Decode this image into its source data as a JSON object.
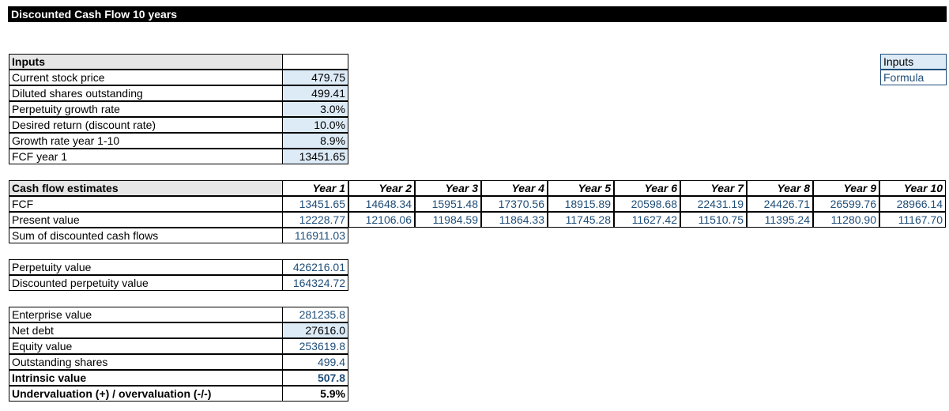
{
  "title": "Discounted Cash Flow 10 years",
  "legend": {
    "inputs": "Inputs",
    "formula": "Formula"
  },
  "inputs": {
    "header": "Inputs",
    "rows": [
      {
        "label": "Current stock price",
        "value": "479.75"
      },
      {
        "label": "Diluted shares outstanding",
        "value": "499.41"
      },
      {
        "label": "Perpetuity growth rate",
        "value": "3.0%"
      },
      {
        "label": "Desired return (discount rate)",
        "value": "10.0%"
      },
      {
        "label": "Growth rate year 1-10",
        "value": "8.9%"
      },
      {
        "label": "FCF year 1",
        "value": "13451.65"
      }
    ]
  },
  "cashflow": {
    "header": "Cash flow estimates",
    "years": [
      "Year 1",
      "Year 2",
      "Year 3",
      "Year 4",
      "Year 5",
      "Year 6",
      "Year 7",
      "Year 8",
      "Year 9",
      "Year 10"
    ],
    "fcf_label": "FCF",
    "fcf": [
      "13451.65",
      "14648.34",
      "15951.48",
      "17370.56",
      "18915.89",
      "20598.68",
      "22431.19",
      "24426.71",
      "26599.76",
      "28966.14"
    ],
    "pv_label": "Present value",
    "pv": [
      "12228.77",
      "12106.06",
      "11984.59",
      "11864.33",
      "11745.28",
      "11627.42",
      "11510.75",
      "11395.24",
      "11280.90",
      "11167.70"
    ],
    "sum_label": "Sum of discounted cash flows",
    "sum": "116911.03"
  },
  "perpetuity": {
    "value_label": "Perpetuity value",
    "value": "426216.01",
    "discounted_label": "Discounted perpetuity value",
    "discounted": "164324.72"
  },
  "valuation": {
    "ev_label": "Enterprise value",
    "ev": "281235.8",
    "debt_label": "Net debt",
    "debt": "27616.0",
    "equity_label": "Equity value",
    "equity": "253619.8",
    "shares_label": "Outstanding shares",
    "shares": "499.4",
    "intrinsic_label": "Intrinsic value",
    "intrinsic": "507.8",
    "under_label": "Undervaluation (+) / overvaluation (-/-)",
    "under": "5.9%"
  }
}
